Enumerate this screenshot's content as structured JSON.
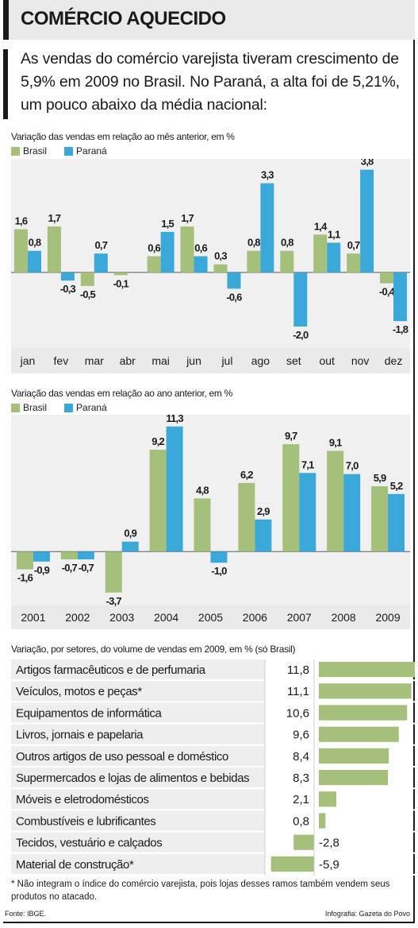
{
  "title": "COMÉRCIO AQUECIDO",
  "intro": "As vendas do comércio varejista tiveram crescimento de 5,9% em 2009 no Brasil. No Paraná, a alta foi de 5,21%, um pouco abaixo da média nacional:",
  "colors": {
    "brasil": "#a4c07a",
    "parana": "#3aa8d8",
    "panel": "#f0f0f0",
    "axis_band": "#eaeaea"
  },
  "legend": {
    "brasil": "Brasil",
    "parana": "Paraná"
  },
  "chart_data": [
    {
      "type": "bar",
      "subtitle": "Variação das vendas em relação ao mês anterior, em %",
      "categories": [
        "jan",
        "fev",
        "mar",
        "abr",
        "mai",
        "jun",
        "jul",
        "ago",
        "set",
        "out",
        "nov",
        "dez"
      ],
      "series": [
        {
          "name": "Brasil",
          "values": [
            1.6,
            1.7,
            -0.5,
            -0.1,
            0.6,
            1.7,
            0.3,
            0.8,
            0.8,
            1.4,
            0.7,
            -0.4
          ],
          "labels": [
            "1,6",
            "1,7",
            "-0,5",
            "-0,1",
            "0,6",
            "1,7",
            "0,3",
            "0,8",
            "0,8",
            "1,4",
            "0,7",
            "-0,4"
          ]
        },
        {
          "name": "Paraná",
          "values": [
            0.8,
            -0.3,
            0.7,
            0,
            1.5,
            0.6,
            -0.6,
            3.3,
            -2.0,
            1.1,
            3.8,
            -1.8
          ],
          "labels": [
            "0,8",
            "-0,3",
            "0,7",
            "",
            "1,5",
            "0,6",
            "-0,6",
            "3,3",
            "-2,0",
            "1,1",
            "3,8",
            "-1,8"
          ]
        }
      ],
      "ylim": [
        -2.5,
        4.2
      ]
    },
    {
      "type": "bar",
      "subtitle": "Variação das vendas em relação ao ano anterior, em %",
      "categories": [
        "2001",
        "2002",
        "2003",
        "2004",
        "2005",
        "2006",
        "2007",
        "2008",
        "2009"
      ],
      "series": [
        {
          "name": "Brasil",
          "values": [
            -1.6,
            -0.7,
            -3.7,
            9.2,
            4.8,
            6.2,
            9.7,
            9.1,
            5.9
          ],
          "labels": [
            "-1,6",
            "-0,7",
            "-3,7",
            "9,2",
            "4,8",
            "6,2",
            "9,7",
            "9,1",
            "5,9"
          ]
        },
        {
          "name": "Paraná",
          "values": [
            -0.9,
            -0.7,
            0.9,
            11.3,
            -1.0,
            2.9,
            7.1,
            7.0,
            5.2
          ],
          "labels": [
            "-0,9",
            "-0,7",
            "0,9",
            "11,3",
            "-1,0",
            "2,9",
            "7,1",
            "7,0",
            "5,2"
          ]
        }
      ],
      "ylim": [
        -4.5,
        12
      ]
    },
    {
      "type": "bar",
      "subtitle": "Variação, por setores, do volume de vendas em 2009, em % (só Brasil)",
      "categories": [
        "Artigos farmacêuticos e de perfumaria",
        "Veículos, motos e peças*",
        "Equipamentos de informática",
        "Livros, jornais e papelaria",
        "Outros artigos de uso pessoal e doméstico",
        "Supermercados e lojas de alimentos e bebidas",
        "Móveis e eletrodomésticos",
        "Combustíveis e lubrificantes",
        "Tecidos, vestuário e calçados",
        "Material de construção*"
      ],
      "values": [
        11.8,
        11.1,
        10.6,
        9.6,
        8.4,
        8.3,
        2.1,
        0.8,
        -2.8,
        -5.9
      ],
      "labels": [
        "11,8",
        "11,1",
        "10,6",
        "9,6",
        "8,4",
        "8,3",
        "2,1",
        "0,8",
        "-2,8",
        "-5,9"
      ],
      "orientation": "horizontal"
    }
  ],
  "footnote": "* Não integram o índice do comércio varejista, pois lojas desses ramos também vendem seus produtos no atacado.",
  "source": "Fonte: IBGE.",
  "credit": "Infografia: Gazeta do Povo"
}
